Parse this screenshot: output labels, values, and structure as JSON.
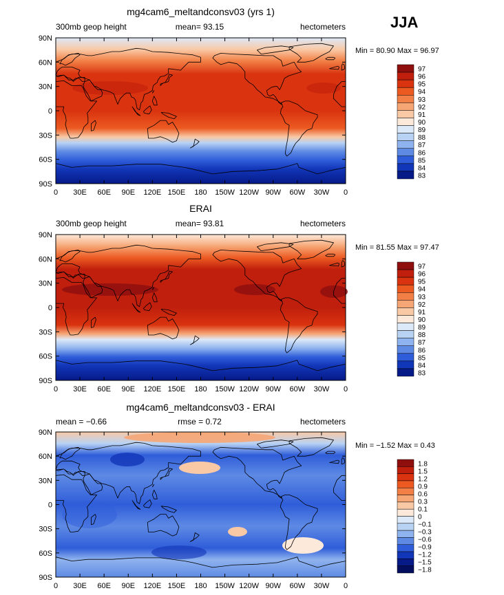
{
  "season_label": "JJA",
  "chart_data": [
    {
      "type": "heatmap",
      "title": "mg4cam6_meltandconsv03 (yrs 1)",
      "left_label": "300mb geop height",
      "center_label": "mean=  93.15",
      "units": "hectometers",
      "min_max": "Min =  80.90 Max =  96.97",
      "min": 80.9,
      "max": 96.97,
      "x_ticks": [
        "0",
        "30E",
        "60E",
        "90E",
        "120E",
        "150E",
        "180",
        "150W",
        "120W",
        "90W",
        "60W",
        "30W",
        "0"
      ],
      "y_ticks": [
        "90N",
        "60N",
        "30N",
        "0",
        "30S",
        "60S",
        "90S"
      ],
      "colorbar_labels": [
        "97",
        "96",
        "95",
        "94",
        "93",
        "92",
        "91",
        "90",
        "89",
        "88",
        "87",
        "86",
        "85",
        "84",
        "83"
      ],
      "colorbar_colors": [
        "#8f0f0f",
        "#bf1f0c",
        "#d9330f",
        "#ec5a22",
        "#f27f45",
        "#f6a675",
        "#f9c9a6",
        "#fde9da",
        "#dce9f8",
        "#b8d2f4",
        "#8fb3ee",
        "#5e8ae4",
        "#2f5dd9",
        "#1236b8",
        "#061a88"
      ]
    },
    {
      "type": "heatmap",
      "title": "ERAI",
      "left_label": "300mb geop height",
      "center_label": "mean=  93.81",
      "units": "hectometers",
      "min_max": "Min =  81.55 Max =  97.47",
      "min": 81.55,
      "max": 97.47,
      "x_ticks": [
        "0",
        "30E",
        "60E",
        "90E",
        "120E",
        "150E",
        "180",
        "150W",
        "120W",
        "90W",
        "60W",
        "30W",
        "0"
      ],
      "y_ticks": [
        "90N",
        "60N",
        "30N",
        "0",
        "30S",
        "60S",
        "90S"
      ],
      "colorbar_labels": [
        "97",
        "96",
        "95",
        "94",
        "93",
        "92",
        "91",
        "90",
        "89",
        "88",
        "87",
        "86",
        "85",
        "84",
        "83"
      ],
      "colorbar_colors": [
        "#8f0f0f",
        "#bf1f0c",
        "#d9330f",
        "#ec5a22",
        "#f27f45",
        "#f6a675",
        "#f9c9a6",
        "#fde9da",
        "#dce9f8",
        "#b8d2f4",
        "#8fb3ee",
        "#5e8ae4",
        "#2f5dd9",
        "#1236b8",
        "#061a88"
      ]
    },
    {
      "type": "heatmap",
      "title": "mg4cam6_meltandconsv03 - ERAI",
      "left_label": "mean =   −0.66",
      "center_label": "rmse =     0.72",
      "units": "hectometers",
      "min_max": "Min =  −1.52 Max =     0.43",
      "min": -1.52,
      "max": 0.43,
      "x_ticks": [
        "0",
        "30E",
        "60E",
        "90E",
        "120E",
        "150E",
        "180",
        "150W",
        "120W",
        "90W",
        "60W",
        "30W",
        "0"
      ],
      "y_ticks": [
        "90N",
        "60N",
        "30N",
        "0",
        "30S",
        "60S",
        "90S"
      ],
      "colorbar_labels": [
        "1.8",
        "1.5",
        "1.2",
        "0.9",
        "0.6",
        "0.3",
        "0.1",
        "0",
        "−0.1",
        "−0.3",
        "−0.6",
        "−0.9",
        "−1.2",
        "−1.5",
        "−1.8"
      ],
      "colorbar_colors": [
        "#8f0f0f",
        "#bf1f0c",
        "#d9330f",
        "#ec5a22",
        "#f27f45",
        "#f6a675",
        "#f9c9a6",
        "#fde9da",
        "#dce9f8",
        "#b8d2f4",
        "#8fb3ee",
        "#5e8ae4",
        "#2f5dd9",
        "#1236b8",
        "#061a88",
        "#040e5e"
      ]
    }
  ]
}
